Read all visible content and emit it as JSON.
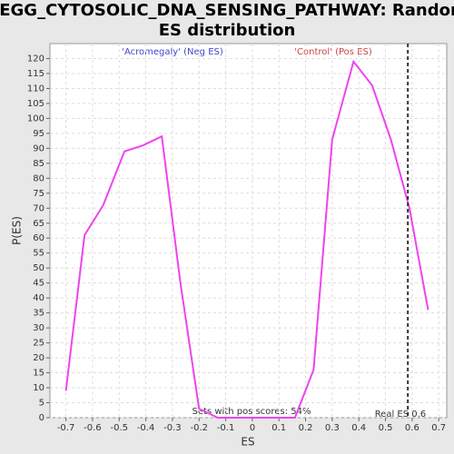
{
  "chart_data": {
    "type": "line",
    "title": "KEGG_CYTOSOLIC_DNA_SENSING_PATHWAY: Random ES distribution",
    "x_label": "ES",
    "y_label": "P(ES)",
    "x": [
      -0.7,
      -0.63,
      -0.56,
      -0.48,
      -0.41,
      -0.34,
      -0.27,
      -0.2,
      -0.13,
      -0.06,
      0.02,
      0.09,
      0.16,
      0.23,
      0.3,
      0.38,
      0.45,
      0.52,
      0.59,
      0.66
    ],
    "series": [
      {
        "name": "P(ES)",
        "color": "#ee44ee",
        "values": [
          9,
          61,
          71,
          89,
          91,
          94,
          45,
          3,
          0,
          0,
          0,
          0,
          0,
          16,
          93,
          119,
          111,
          93,
          70,
          36
        ]
      }
    ],
    "xlim": [
      -0.76,
      0.73
    ],
    "ylim": [
      0,
      125
    ],
    "xticks": [
      -0.7,
      -0.6,
      -0.5,
      -0.4,
      -0.3,
      -0.2,
      -0.1,
      0,
      0.1,
      0.2,
      0.3,
      0.4,
      0.5,
      0.6,
      0.7
    ],
    "yticks": [
      0,
      5,
      10,
      15,
      20,
      25,
      30,
      35,
      40,
      45,
      50,
      55,
      60,
      65,
      70,
      75,
      80,
      85,
      90,
      95,
      100,
      105,
      110,
      115,
      120
    ],
    "grid": true,
    "real_es": {
      "value": 0.584,
      "label": "Real ES 0.6"
    },
    "annotations": {
      "neg": "'Acromegaly' (Neg ES)",
      "pos": "'Control' (Pos ES)",
      "pos_scores": "Sets with pos scores: 54%"
    }
  }
}
